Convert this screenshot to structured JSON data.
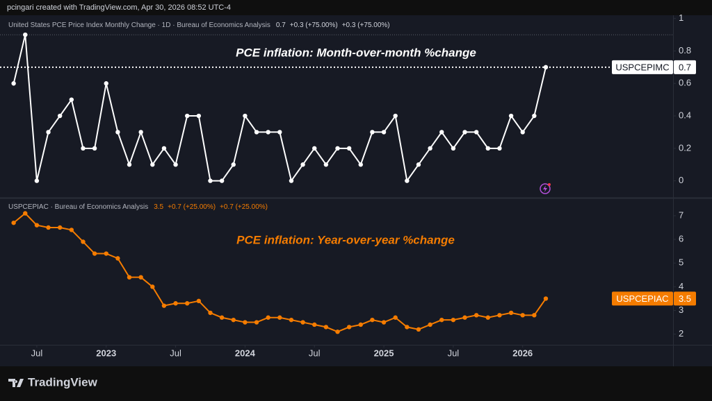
{
  "header": {
    "text": "pcingari created with TradingView.com, Apr 30, 2026 08:52 UTC-4"
  },
  "footer": {
    "logo_text": "TradingView"
  },
  "chart_data": [
    {
      "type": "line",
      "annotation": "PCE inflation: Month-over-month %change",
      "legend": {
        "text": "United States PCE Price Index Monthly Change · 1D · Bureau of Economics Analysis",
        "changes": [
          "+0.3 (+75.00%)",
          "+0.3 (+75.00%)"
        ]
      },
      "x": [
        "2022-05",
        "2022-06",
        "2022-07",
        "2022-08",
        "2022-09",
        "2022-10",
        "2022-11",
        "2022-12",
        "2023-01",
        "2023-02",
        "2023-03",
        "2023-04",
        "2023-05",
        "2023-06",
        "2023-07",
        "2023-08",
        "2023-09",
        "2023-10",
        "2023-11",
        "2023-12",
        "2024-01",
        "2024-02",
        "2024-03",
        "2024-04",
        "2024-05",
        "2024-06",
        "2024-07",
        "2024-08",
        "2024-09",
        "2024-10",
        "2024-11",
        "2024-12",
        "2025-01",
        "2025-02",
        "2025-03",
        "2025-04",
        "2025-05",
        "2025-06",
        "2025-07",
        "2025-08",
        "2025-09",
        "2025-10",
        "2025-11",
        "2025-12",
        "2026-01",
        "2026-02",
        "2026-03"
      ],
      "series": [
        {
          "name": "USPCEPIMC",
          "color": "#ffffff",
          "values": [
            0.6,
            0.9,
            0.0,
            0.3,
            0.4,
            0.5,
            0.2,
            0.2,
            0.6,
            0.3,
            0.1,
            0.3,
            0.1,
            0.2,
            0.1,
            0.4,
            0.4,
            0.0,
            0.0,
            0.1,
            0.4,
            0.3,
            0.3,
            0.3,
            0.0,
            0.1,
            0.2,
            0.1,
            0.2,
            0.2,
            0.1,
            0.3,
            0.3,
            0.4,
            0.0,
            0.1,
            0.2,
            0.3,
            0.2,
            0.3,
            0.3,
            0.2,
            0.2,
            0.4,
            0.3,
            0.4,
            0.7
          ]
        }
      ],
      "xlim": [
        "2022-04",
        "2027-02"
      ],
      "ylim": [
        -0.1,
        1.02
      ],
      "yticks": [
        0,
        0.2,
        0.4,
        0.6,
        0.8,
        1
      ],
      "grid": false
    },
    {
      "type": "line",
      "annotation": "PCE inflation: Year-over-year %change",
      "legend": {
        "text": "USPCEPIAC · Bureau of Economics Analysis",
        "changes": [
          "+0.7 (+25.00%)",
          "+0.7 (+25.00%)"
        ]
      },
      "x": [
        "2022-05",
        "2022-06",
        "2022-07",
        "2022-08",
        "2022-09",
        "2022-10",
        "2022-11",
        "2022-12",
        "2023-01",
        "2023-02",
        "2023-03",
        "2023-04",
        "2023-05",
        "2023-06",
        "2023-07",
        "2023-08",
        "2023-09",
        "2023-10",
        "2023-11",
        "2023-12",
        "2024-01",
        "2024-02",
        "2024-03",
        "2024-04",
        "2024-05",
        "2024-06",
        "2024-07",
        "2024-08",
        "2024-09",
        "2024-10",
        "2024-11",
        "2024-12",
        "2025-01",
        "2025-02",
        "2025-03",
        "2025-04",
        "2025-05",
        "2025-06",
        "2025-07",
        "2025-08",
        "2025-09",
        "2025-10",
        "2025-11",
        "2025-12",
        "2026-01",
        "2026-02",
        "2026-03"
      ],
      "series": [
        {
          "name": "USPCEPIAC",
          "color": "#f57c00",
          "values": [
            6.7,
            7.1,
            6.6,
            6.5,
            6.5,
            6.4,
            5.9,
            5.4,
            5.4,
            5.2,
            4.4,
            4.4,
            4.0,
            3.2,
            3.3,
            3.3,
            3.4,
            2.9,
            2.7,
            2.6,
            2.5,
            2.5,
            2.7,
            2.7,
            2.6,
            2.5,
            2.4,
            2.3,
            2.1,
            2.3,
            2.4,
            2.6,
            2.5,
            2.7,
            2.3,
            2.2,
            2.4,
            2.6,
            2.6,
            2.7,
            2.8,
            2.7,
            2.8,
            2.9,
            2.8,
            2.8,
            3.5
          ]
        }
      ],
      "xlim": [
        "2022-04",
        "2027-02"
      ],
      "xticks": [
        {
          "value": "2022-07",
          "label": "Jul"
        },
        {
          "value": "2023-01",
          "label": "2023"
        },
        {
          "value": "2023-07",
          "label": "Jul"
        },
        {
          "value": "2024-01",
          "label": "2024"
        },
        {
          "value": "2024-07",
          "label": "Jul"
        },
        {
          "value": "2025-01",
          "label": "2025"
        },
        {
          "value": "2025-07",
          "label": "Jul"
        },
        {
          "value": "2026-01",
          "label": "2026"
        }
      ],
      "ylim": [
        1.55,
        7.7
      ],
      "yticks": [
        2,
        3,
        4,
        5,
        6,
        7
      ],
      "grid": false
    }
  ]
}
